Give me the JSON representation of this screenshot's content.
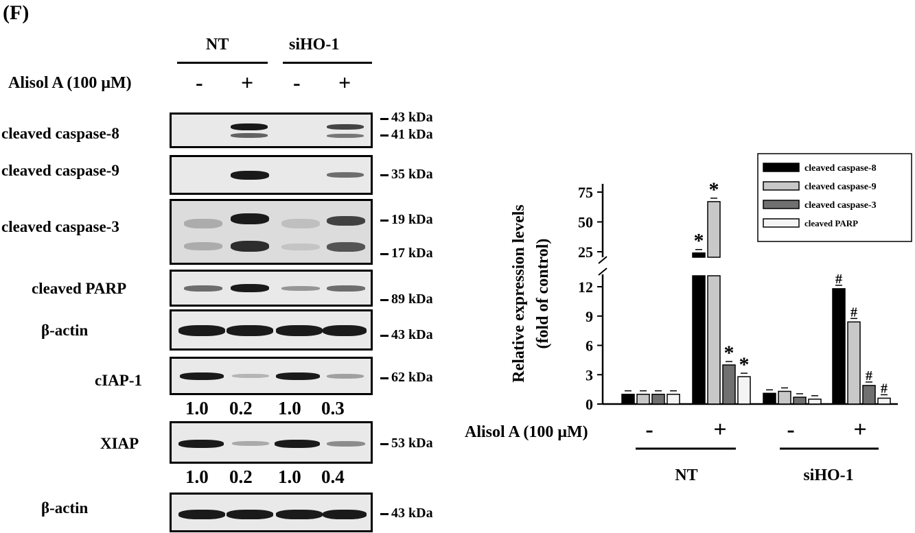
{
  "panel_letter": "(F)",
  "groups": {
    "nt": "NT",
    "sihoi": "siHO-1"
  },
  "treatment_label": "Alisol A (100 μM)",
  "signs": [
    "-",
    "+",
    "-",
    "+"
  ],
  "blots": [
    {
      "label": "cleaved caspase-8",
      "markers": [
        "43 kDa",
        "41 kDa"
      ]
    },
    {
      "label": "cleaved caspase-9",
      "markers": [
        "35 kDa"
      ]
    },
    {
      "label": "cleaved caspase-3",
      "markers": [
        "19 kDa",
        "17 kDa"
      ]
    },
    {
      "label": "cleaved PARP",
      "markers": [
        "89 kDa"
      ]
    },
    {
      "label": "β-actin",
      "markers": [
        "43 kDa"
      ]
    },
    {
      "label": "cIAP-1",
      "markers": [
        "62 kDa"
      ],
      "quant": [
        "1.0",
        "0.2",
        "1.0",
        "0.3"
      ]
    },
    {
      "label": "XIAP",
      "markers": [
        "53 kDa"
      ],
      "quant": [
        "1.0",
        "0.2",
        "1.0",
        "0.4"
      ]
    },
    {
      "label": "β-actin",
      "markers": [
        "43 kDa"
      ]
    }
  ],
  "chart_data": {
    "type": "bar",
    "ylabel_line1": "Relative expression levels",
    "ylabel_line2": "(fold of control)",
    "y_ticks_lower": [
      "0",
      "3",
      "6",
      "9",
      "12"
    ],
    "y_ticks_upper": [
      "25",
      "50",
      "75"
    ],
    "y_axis_break": true,
    "categories": [
      "-",
      "+",
      "-",
      "+"
    ],
    "category_axis_label": "Alisol A (100 μM)",
    "groups": [
      "NT",
      "siHO-1"
    ],
    "series": [
      {
        "name": "cleaved caspase-8",
        "color": "#000000",
        "values": [
          1.0,
          24,
          1.1,
          11.8
        ],
        "marks": [
          "",
          "*",
          "",
          "#"
        ]
      },
      {
        "name": "cleaved caspase-9",
        "color": "#c8c8c8",
        "values": [
          1.0,
          67,
          1.3,
          8.4
        ],
        "marks": [
          "",
          "*",
          "",
          "#"
        ]
      },
      {
        "name": "cleaved caspase-3",
        "color": "#707070",
        "values": [
          1.0,
          4.0,
          0.7,
          1.9
        ],
        "marks": [
          "",
          "*",
          "",
          "#"
        ]
      },
      {
        "name": "cleaved PARP",
        "color": "#f4f4f4",
        "values": [
          1.0,
          2.8,
          0.5,
          0.6
        ],
        "marks": [
          "",
          "*",
          "",
          "#"
        ]
      }
    ],
    "legend_position": "top-right"
  }
}
